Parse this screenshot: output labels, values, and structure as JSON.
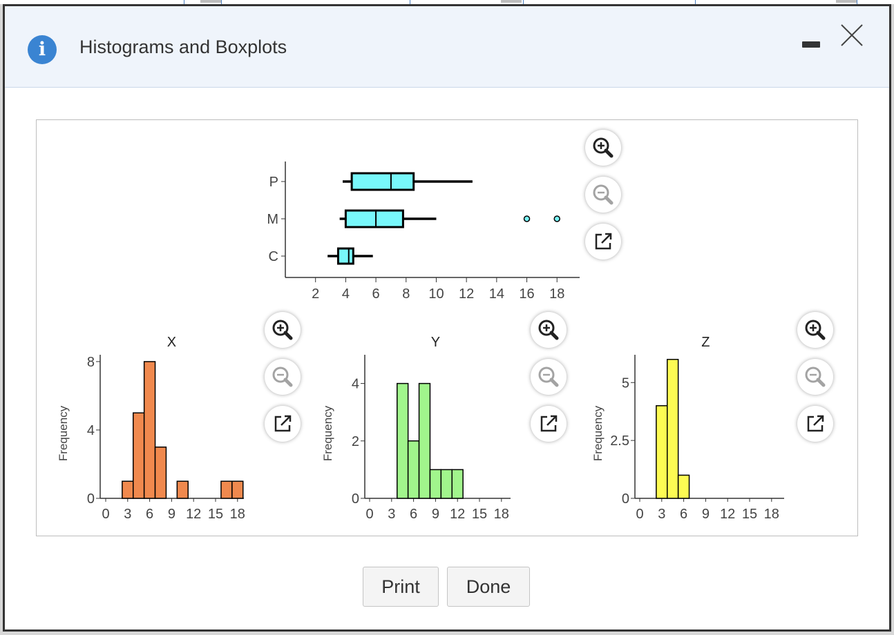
{
  "dialog": {
    "title": "Histograms and Boxplots",
    "icons": {
      "info": "info-icon",
      "minimize": "minimize-icon",
      "close": "close-icon"
    },
    "colors": {
      "info": "#3a84d2",
      "header_bg": "#eff4fb"
    }
  },
  "toolbar_icons": [
    "zoom-in-icon",
    "zoom-out-icon",
    "open-external-icon"
  ],
  "footer": {
    "print_label": "Print",
    "done_label": "Done"
  },
  "chart_data": [
    {
      "type": "boxplot",
      "orientation": "horizontal",
      "color": "#78f8fb",
      "x_ticks": [
        2,
        4,
        6,
        8,
        10,
        12,
        14,
        16,
        18
      ],
      "xlim": [
        0,
        19.5
      ],
      "series": [
        {
          "name": "P",
          "whisker_low": 3.8,
          "q1": 4.4,
          "median": 7.0,
          "q3": 8.5,
          "whisker_high": 12.4,
          "outliers": []
        },
        {
          "name": "M",
          "whisker_low": 3.6,
          "q1": 4.0,
          "median": 6.0,
          "q3": 7.8,
          "whisker_high": 10.0,
          "outliers": [
            16.0,
            18.0
          ]
        },
        {
          "name": "C",
          "whisker_low": 2.8,
          "q1": 3.5,
          "median": 4.2,
          "q3": 4.5,
          "whisker_high": 5.8,
          "outliers": []
        }
      ]
    },
    {
      "type": "bar",
      "title": "X",
      "ylabel": "Frequency",
      "color": "#f0894e",
      "x_ticks": [
        0,
        3,
        6,
        9,
        12,
        15,
        18
      ],
      "y_ticks": [
        0,
        4,
        8
      ],
      "ylim": [
        0,
        8.4
      ],
      "bin_width": 1.5,
      "bins": [
        {
          "start": 2.25,
          "value": 1
        },
        {
          "start": 3.75,
          "value": 5
        },
        {
          "start": 5.25,
          "value": 8
        },
        {
          "start": 6.75,
          "value": 3
        },
        {
          "start": 9.75,
          "value": 1
        },
        {
          "start": 15.75,
          "value": 1
        },
        {
          "start": 17.25,
          "value": 1
        }
      ]
    },
    {
      "type": "bar",
      "title": "Y",
      "ylabel": "Frequency",
      "color": "#a1f58c",
      "x_ticks": [
        0,
        3,
        6,
        9,
        12,
        15,
        18
      ],
      "y_ticks": [
        0,
        2,
        4
      ],
      "ylim": [
        0,
        5.0
      ],
      "bin_width": 1.5,
      "bins": [
        {
          "start": 3.75,
          "value": 4
        },
        {
          "start": 5.25,
          "value": 2
        },
        {
          "start": 6.75,
          "value": 4
        },
        {
          "start": 8.25,
          "value": 1
        },
        {
          "start": 9.75,
          "value": 1
        },
        {
          "start": 11.25,
          "value": 1
        }
      ]
    },
    {
      "type": "bar",
      "title": "Z",
      "ylabel": "Frequency",
      "color": "#fdfb53",
      "x_ticks": [
        0,
        3,
        6,
        9,
        12,
        15,
        18
      ],
      "y_ticks": [
        0,
        2.5,
        5
      ],
      "ylim": [
        0,
        6.2
      ],
      "bin_width": 1.5,
      "bins": [
        {
          "start": 2.25,
          "value": 4
        },
        {
          "start": 3.75,
          "value": 6
        },
        {
          "start": 5.25,
          "value": 1
        }
      ]
    }
  ]
}
